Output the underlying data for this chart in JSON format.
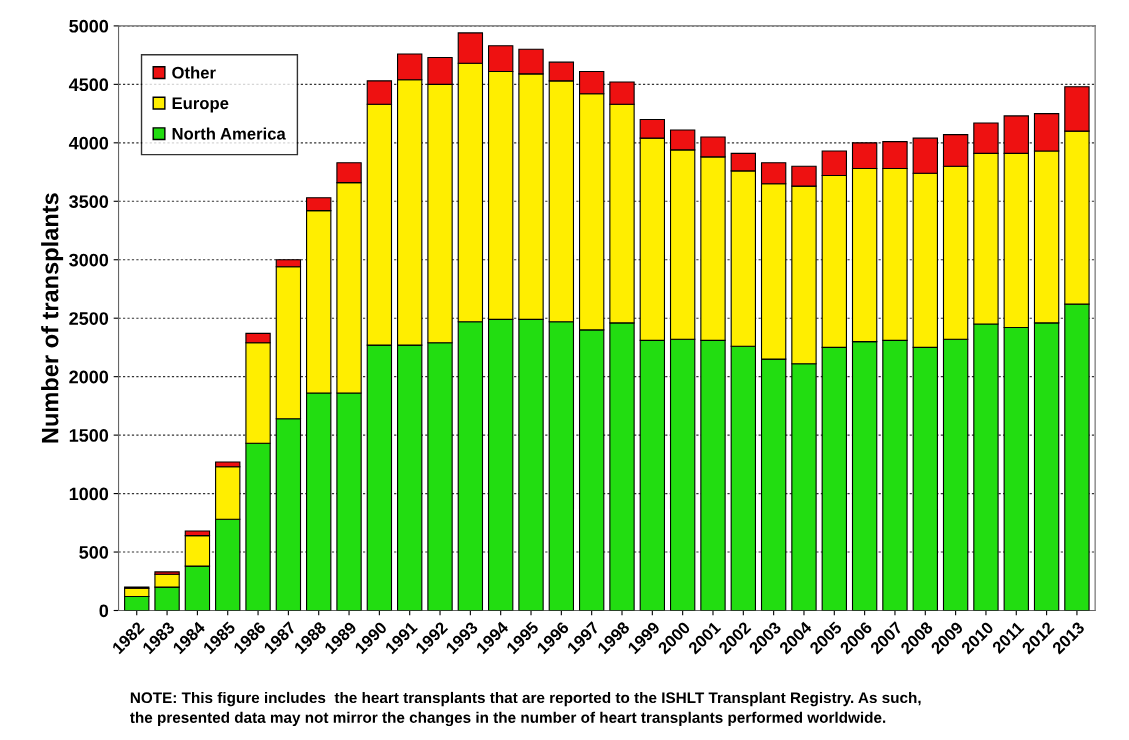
{
  "chart_data": {
    "type": "bar",
    "stacked": true,
    "ylabel": "Number of transplants",
    "categories": [
      "1982",
      "1983",
      "1984",
      "1985",
      "1986",
      "1987",
      "1988",
      "1989",
      "1990",
      "1991",
      "1992",
      "1993",
      "1994",
      "1995",
      "1996",
      "1997",
      "1998",
      "1999",
      "2000",
      "2001",
      "2002",
      "2003",
      "2004",
      "2005",
      "2006",
      "2007",
      "2008",
      "2009",
      "2010",
      "2011",
      "2012",
      "2013"
    ],
    "series": [
      {
        "name": "North America",
        "color": "#22dd11",
        "values": [
          120,
          200,
          380,
          780,
          1430,
          1640,
          1860,
          1860,
          2270,
          2270,
          2290,
          2470,
          2490,
          2490,
          2470,
          2400,
          2460,
          2310,
          2320,
          2310,
          2260,
          2150,
          2110,
          2250,
          2300,
          2310,
          2250,
          2320,
          2450,
          2420,
          2460,
          2620
        ]
      },
      {
        "name": "Europe",
        "color": "#ffee00",
        "values": [
          70,
          110,
          260,
          450,
          860,
          1300,
          1560,
          1800,
          2060,
          2270,
          2210,
          2210,
          2120,
          2100,
          2060,
          2020,
          1870,
          1730,
          1620,
          1570,
          1500,
          1500,
          1520,
          1470,
          1480,
          1470,
          1490,
          1480,
          1460,
          1490,
          1470,
          1480
        ]
      },
      {
        "name": "Other",
        "color": "#ee1111",
        "values": [
          10,
          20,
          40,
          40,
          80,
          60,
          110,
          170,
          200,
          220,
          230,
          260,
          220,
          210,
          160,
          190,
          190,
          160,
          170,
          170,
          150,
          180,
          170,
          210,
          220,
          230,
          300,
          270,
          260,
          320,
          320,
          380
        ]
      }
    ],
    "ylim": [
      0,
      5000
    ],
    "yticks": [
      0,
      500,
      1000,
      1500,
      2000,
      2500,
      3000,
      3500,
      4000,
      4500,
      5000
    ],
    "grid": "y",
    "legend": "top left",
    "annotations": [
      "NOTE: This figure includes  the heart transplants that are reported to the ISHLT Transplant Registry. As such,\nthe presented data may not mirror the changes in the number of heart transplants performed worldwide."
    ]
  }
}
